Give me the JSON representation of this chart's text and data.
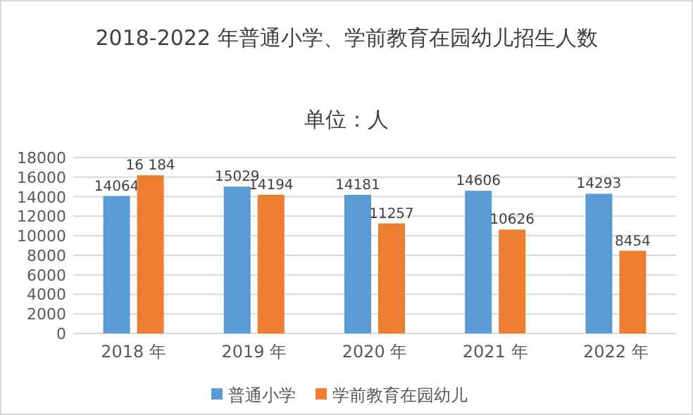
{
  "chart_data": {
    "type": "bar",
    "title": "2018-2022 年普通小学、学前教育在园幼儿招生人数",
    "subtitle": "单位：人",
    "categories": [
      "2018 年",
      "2019 年",
      "2020 年",
      "2021 年",
      "2022 年"
    ],
    "series": [
      {
        "name": "普通小学",
        "color": "#5b9bd5",
        "values": [
          14064,
          15029,
          14181,
          14606,
          14293
        ],
        "value_labels": [
          "14064",
          "15029",
          "14181",
          "14606",
          "14293"
        ]
      },
      {
        "name": "学前教育在园幼儿",
        "color": "#ed7d31",
        "values": [
          16184,
          14194,
          11257,
          10626,
          8454
        ],
        "value_labels": [
          "16 184",
          "14194",
          "11257",
          "10626",
          "8454"
        ]
      }
    ],
    "ylim": [
      0,
      18000
    ],
    "yticks": [
      0,
      2000,
      4000,
      6000,
      8000,
      10000,
      12000,
      14000,
      16000,
      18000
    ],
    "grid": "y",
    "legend": "bottom"
  }
}
